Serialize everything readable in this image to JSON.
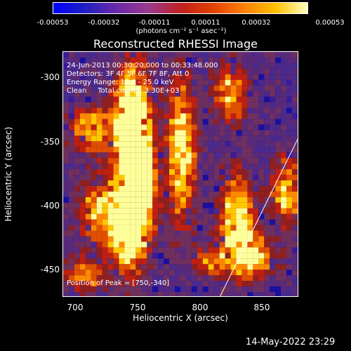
{
  "colorbar": {
    "ticks": [
      "-0.00053",
      "-0.00032",
      "-0.00011",
      "0.00011",
      "0.00032",
      "0.00053"
    ],
    "units_label": "(photons cm⁻² s⁻¹ asec⁻²)",
    "colors": [
      "#0000ff",
      "#2020c0",
      "#6a2aa8",
      "#9a3a90",
      "#c02020",
      "#e04000",
      "#ff8000",
      "#ffc000",
      "#ffffc0"
    ]
  },
  "title": "Reconstructed RHESSI Image",
  "overlay": {
    "time": "24-Jun-2013 00:30:20.000 to 00:33:48.000",
    "detectors": "Detectors: 3F 4F 5F 6F 7F 8F, Att 0",
    "energy": "Energy Range: 12.0 - 25.0 keV",
    "algorithm": "Clean     Total counts: 3.30E+03",
    "peak": "Position of Peak = [750,-340]"
  },
  "axes": {
    "xlabel": "Heliocentric X (arcsec)",
    "ylabel": "Heliocentric Y (arcsec)",
    "xticks": [
      "700",
      "750",
      "800",
      "850"
    ],
    "yticks": [
      "-300",
      "-350",
      "-400",
      "-450"
    ]
  },
  "footer": {
    "date": "14-May-2022 23:29"
  },
  "chart_data": {
    "type": "heatmap",
    "title": "Reconstructed RHESSI Image",
    "xlabel": "Heliocentric X (arcsec)",
    "ylabel": "Heliocentric Y (arcsec)",
    "xlim": [
      686,
      876
    ],
    "ylim": [
      -473,
      -278
    ],
    "zlim": [
      -0.00053,
      0.00053
    ],
    "peak": [
      750,
      -340
    ]
  }
}
